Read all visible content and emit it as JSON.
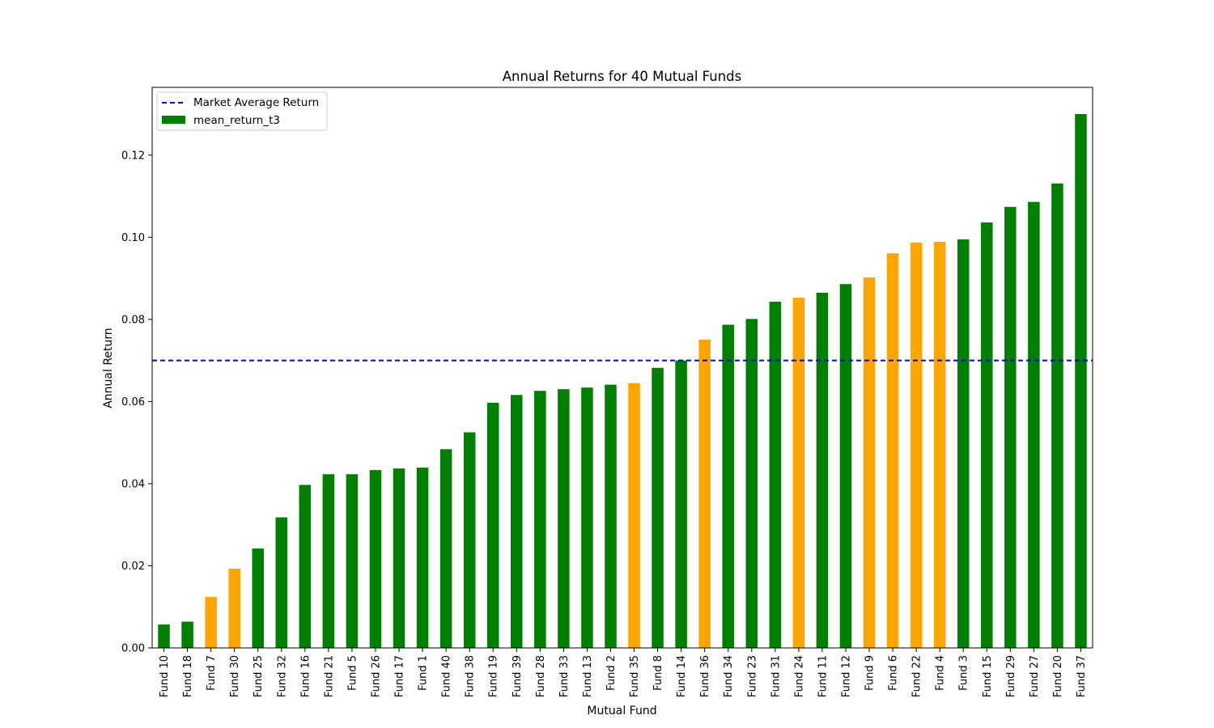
{
  "chart_data": {
    "type": "bar",
    "title": "Annual Returns for 40 Mutual Funds",
    "xlabel": "Mutual Fund",
    "ylabel": "Annual Return",
    "ylim": [
      0,
      0.1365
    ],
    "yticks": [
      0.0,
      0.02,
      0.04,
      0.06,
      0.08,
      0.1,
      0.12
    ],
    "ytick_labels": [
      "0.00",
      "0.02",
      "0.04",
      "0.06",
      "0.08",
      "0.10",
      "0.12"
    ],
    "grid": false,
    "legend_position": "top-left",
    "categories": [
      "Fund 10",
      "Fund 18",
      "Fund 7",
      "Fund 30",
      "Fund 25",
      "Fund 32",
      "Fund 16",
      "Fund 21",
      "Fund 5",
      "Fund 26",
      "Fund 17",
      "Fund 1",
      "Fund 40",
      "Fund 38",
      "Fund 19",
      "Fund 39",
      "Fund 28",
      "Fund 33",
      "Fund 13",
      "Fund 2",
      "Fund 35",
      "Fund 8",
      "Fund 14",
      "Fund 36",
      "Fund 34",
      "Fund 23",
      "Fund 31",
      "Fund 24",
      "Fund 11",
      "Fund 12",
      "Fund 9",
      "Fund 6",
      "Fund 22",
      "Fund 4",
      "Fund 3",
      "Fund 15",
      "Fund 29",
      "Fund 27",
      "Fund 20",
      "Fund 37"
    ],
    "series": [
      {
        "name": "mean_return_t3",
        "values": [
          0.0057,
          0.0064,
          0.0124,
          0.0193,
          0.0242,
          0.0318,
          0.0397,
          0.0423,
          0.0423,
          0.0433,
          0.0437,
          0.0439,
          0.0484,
          0.0525,
          0.0597,
          0.0616,
          0.0626,
          0.063,
          0.0634,
          0.0641,
          0.0645,
          0.0682,
          0.07,
          0.0751,
          0.0787,
          0.0801,
          0.0843,
          0.0853,
          0.0865,
          0.0886,
          0.0902,
          0.0961,
          0.0987,
          0.0989,
          0.0995,
          0.1036,
          0.1074,
          0.1086,
          0.1131,
          0.13
        ],
        "colors": [
          "green",
          "green",
          "orange",
          "orange",
          "green",
          "green",
          "green",
          "green",
          "green",
          "green",
          "green",
          "green",
          "green",
          "green",
          "green",
          "green",
          "green",
          "green",
          "green",
          "green",
          "orange",
          "green",
          "green",
          "orange",
          "green",
          "green",
          "green",
          "orange",
          "green",
          "green",
          "orange",
          "orange",
          "orange",
          "orange",
          "green",
          "green",
          "green",
          "green",
          "green",
          "green"
        ]
      }
    ],
    "reference_line": {
      "name": "Market Average Return",
      "value": 0.07,
      "color": "#0000ff",
      "style": "dashed"
    },
    "colors": {
      "green": "#008000",
      "orange": "#ffa500"
    }
  }
}
